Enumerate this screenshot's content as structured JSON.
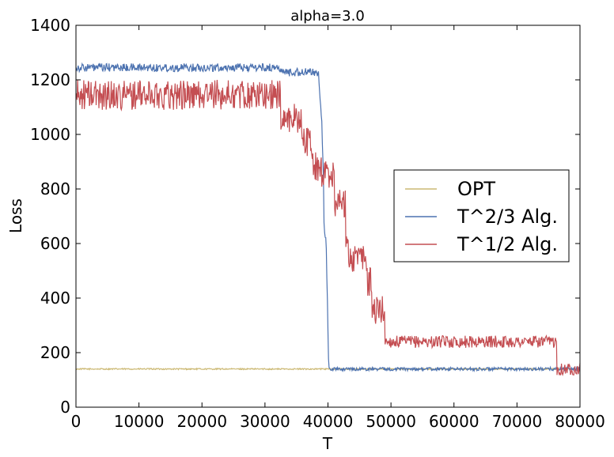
{
  "chart_data": {
    "type": "line",
    "title": "alpha=3.0",
    "xlabel": "T",
    "ylabel": "Loss",
    "xlim": [
      0,
      80000
    ],
    "ylim": [
      0,
      1400
    ],
    "xticks": [
      0,
      10000,
      20000,
      30000,
      40000,
      50000,
      60000,
      70000,
      80000
    ],
    "xtick_labels": [
      "0",
      "10000",
      "20000",
      "30000",
      "40000",
      "50000",
      "60000",
      "70000",
      "80000"
    ],
    "yticks": [
      0,
      200,
      400,
      600,
      800,
      1000,
      1200,
      1400
    ],
    "ytick_labels": [
      "0",
      "200",
      "400",
      "600",
      "800",
      "1000",
      "1200",
      "1400"
    ],
    "legend_position": "center-right",
    "series": [
      {
        "name": "OPT",
        "color": "#ccb974",
        "noise": 6,
        "points": [
          [
            0,
            140
          ],
          [
            80000,
            140
          ]
        ]
      },
      {
        "name": "T^2/3 Alg.",
        "color": "#4c72b0",
        "noise": 15,
        "points": [
          [
            0,
            1245
          ],
          [
            32500,
            1245
          ],
          [
            32500,
            1228
          ],
          [
            38500,
            1228
          ],
          [
            38700,
            1150
          ],
          [
            39000,
            1060
          ],
          [
            39300,
            820
          ],
          [
            39400,
            640
          ],
          [
            39700,
            600
          ],
          [
            39900,
            400
          ],
          [
            40100,
            160
          ],
          [
            40200,
            140
          ],
          [
            80000,
            140
          ]
        ]
      },
      {
        "name": "T^1/2 Alg.",
        "color": "#c44e52",
        "noise": 55,
        "points": [
          [
            0,
            1145
          ],
          [
            32500,
            1145
          ],
          [
            32500,
            1060
          ],
          [
            35800,
            1060
          ],
          [
            35800,
            975
          ],
          [
            37500,
            975
          ],
          [
            37500,
            880
          ],
          [
            39000,
            880
          ],
          [
            39000,
            855
          ],
          [
            41000,
            855
          ],
          [
            41000,
            750
          ],
          [
            42800,
            750
          ],
          [
            42800,
            640
          ],
          [
            43200,
            640
          ],
          [
            43200,
            545
          ],
          [
            46200,
            545
          ],
          [
            46200,
            460
          ],
          [
            47000,
            460
          ],
          [
            47000,
            355
          ],
          [
            49000,
            355
          ],
          [
            49000,
            240
          ],
          [
            76300,
            240
          ],
          [
            76300,
            140
          ],
          [
            80000,
            140
          ]
        ]
      }
    ]
  }
}
